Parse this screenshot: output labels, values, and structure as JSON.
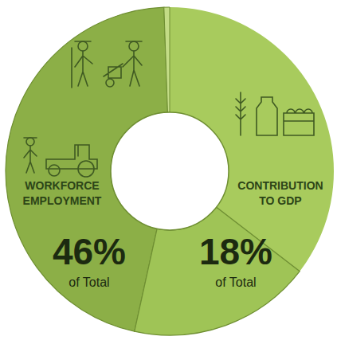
{
  "chart_data": {
    "type": "pie",
    "categories": [
      "WORKFORCE EMPLOYMENT",
      "CONTRIBUTION TO GDP"
    ],
    "values": [
      46,
      18
    ],
    "value_labels": [
      "46%",
      "18%"
    ],
    "annotations": [
      "of Total",
      "of Total"
    ],
    "colors": [
      "#8caf47",
      "#9fc456"
    ],
    "data_labels": true
  }
}
